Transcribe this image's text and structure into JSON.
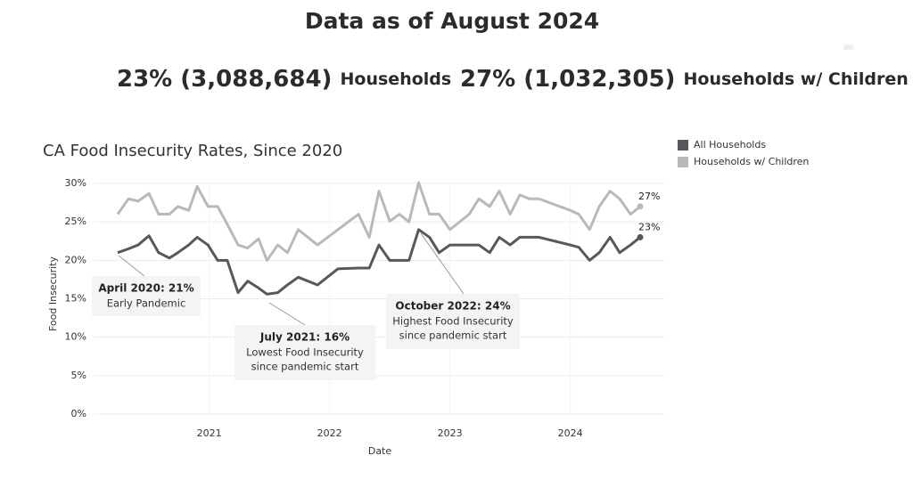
{
  "header": {
    "title": "Data as of August 2024"
  },
  "kpis": [
    {
      "value": "23% (3,088,684)",
      "label": "Households"
    },
    {
      "value": "27% (1,032,305)",
      "label": "Households w/ Children"
    }
  ],
  "chart_data": {
    "type": "line",
    "title": "CA Food Insecurity Rates, Since 2020",
    "x_label": "Date",
    "y_label": "Food Insecurity",
    "x": [
      2020.24,
      2020.33,
      2020.41,
      2020.5,
      2020.58,
      2020.67,
      2020.74,
      2020.83,
      2020.9,
      2020.99,
      2021.07,
      2021.15,
      2021.24,
      2021.32,
      2021.41,
      2021.48,
      2021.57,
      2021.65,
      2021.74,
      2021.9,
      2022.07,
      2022.24,
      2022.33,
      2022.41,
      2022.5,
      2022.58,
      2022.66,
      2022.74,
      2022.83,
      2022.91,
      2023.0,
      2023.16,
      2023.24,
      2023.33,
      2023.41,
      2023.5,
      2023.58,
      2023.66,
      2023.74,
      2024.0,
      2024.07,
      2024.16,
      2024.24,
      2024.33,
      2024.41,
      2024.5,
      2024.58
    ],
    "series": [
      {
        "name": "All Households",
        "color": "#57575f",
        "end_label": "23%",
        "values": [
          21,
          21.5,
          22,
          23.2,
          21,
          20.3,
          21,
          22,
          23,
          22,
          20,
          20,
          15.8,
          17.3,
          16.4,
          15.6,
          15.8,
          16.8,
          17.8,
          16.8,
          18.9,
          19,
          19,
          22,
          20,
          20,
          20,
          24,
          23,
          21,
          22,
          22,
          22,
          21,
          23,
          22,
          23,
          23,
          23,
          22,
          21.7,
          20,
          21,
          23,
          21,
          22,
          23
        ]
      },
      {
        "name": "Households w/ Children",
        "color": "#b9b9b9",
        "end_label": "27%",
        "values": [
          26,
          28,
          27.7,
          28.7,
          26,
          26,
          27,
          26.5,
          29.6,
          27,
          27,
          24.7,
          22,
          21.6,
          22.8,
          20,
          22,
          21,
          24,
          22,
          24,
          26,
          23,
          29,
          25.1,
          26,
          25,
          30.1,
          26,
          26,
          24,
          26,
          28,
          27,
          29,
          26,
          28.5,
          28,
          28,
          26.5,
          26,
          24,
          27,
          29,
          28,
          26,
          27
        ]
      }
    ],
    "xlim": [
      2020.04,
      2024.78
    ],
    "xticks": [
      2021,
      2022,
      2023,
      2024
    ],
    "ylim": [
      0,
      30
    ],
    "yticks": [
      {
        "value": 0,
        "label": "0%"
      },
      {
        "value": 5,
        "label": "5%"
      },
      {
        "value": 10,
        "label": "10%"
      },
      {
        "value": 15,
        "label": "15%"
      },
      {
        "value": 20,
        "label": "20%"
      },
      {
        "value": 25,
        "label": "25%"
      },
      {
        "value": 30,
        "label": "30%"
      }
    ],
    "grid": true,
    "legend": "top-right",
    "annotations": [
      {
        "title": "April 2020: 21%",
        "text": "Early Pandemic"
      },
      {
        "title": "July 2021: 16%",
        "text": "Lowest Food Insecurity",
        "text2": "since pandemic start"
      },
      {
        "title": "October 2022: 24%",
        "text": "Highest Food Insecurity",
        "text2": "since pandemic start"
      }
    ]
  }
}
